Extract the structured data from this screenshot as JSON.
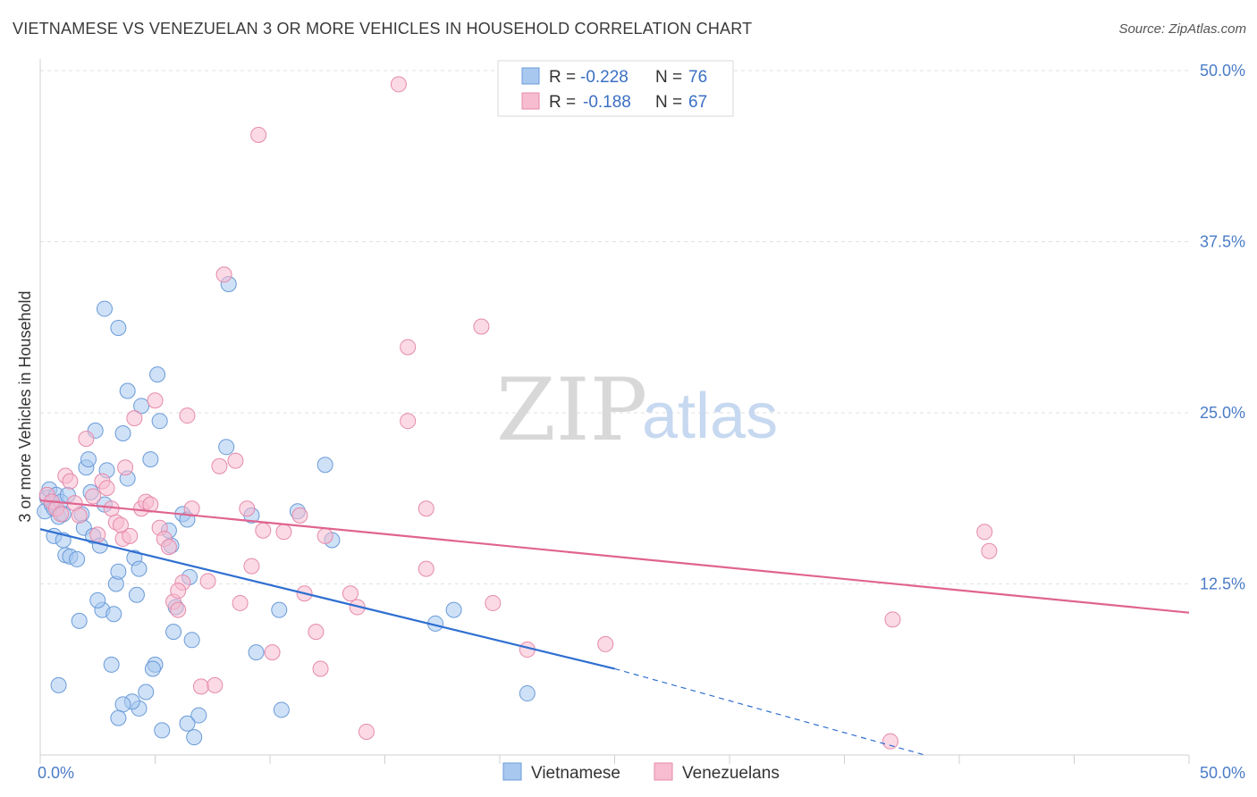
{
  "header": {
    "title": "VIETNAMESE VS VENEZUELAN 3 OR MORE VEHICLES IN HOUSEHOLD CORRELATION CHART",
    "source": "Source: ZipAtlas.com"
  },
  "watermark": {
    "zip": "ZIP",
    "atlas": "atlas"
  },
  "colors": {
    "vietnamese_fill": "#a8c8f0",
    "vietnamese_stroke": "#6a9bd8",
    "vietnamese_line": "#2f6fd1",
    "venezuelan_fill": "#f7bcd0",
    "venezuelan_stroke": "#e58aab",
    "venezuelan_line": "#e0648f",
    "grid": "#e2e2e2",
    "tick_label": "#4a7cc7"
  },
  "chart_data": {
    "type": "scatter",
    "title": "VIETNAMESE VS VENEZUELAN 3 OR MORE VEHICLES IN HOUSEHOLD CORRELATION CHART",
    "xlabel": "",
    "ylabel": "3 or more Vehicles in Household",
    "xlim": [
      0,
      50
    ],
    "ylim": [
      0,
      50
    ],
    "x_tick_labels": [
      "0.0%",
      "50.0%"
    ],
    "y_ticks": [
      12.5,
      25.0,
      37.5,
      50.0
    ],
    "y_tick_labels": [
      "12.5%",
      "25.0%",
      "37.5%",
      "50.0%"
    ],
    "grid": "horizontal dashed",
    "legend_placement": "top-center",
    "legend": [
      {
        "r_label": "R = ",
        "r_value": "-0.228",
        "n_label": "N = ",
        "n_value": "76"
      },
      {
        "r_label": "R = ",
        "r_value": "-0.188",
        "n_label": "N = ",
        "n_value": "67"
      }
    ],
    "bottom_legend": [
      "Vietnamese",
      "Venezuelans"
    ],
    "series": [
      {
        "name": "Vietnamese",
        "trend": {
          "x0": 0,
          "y0": 16.5,
          "x1": 25,
          "y1": 6.3,
          "dash_x1": 38.5,
          "dash_y1": 0.0
        },
        "points": [
          [
            0.2,
            17.8
          ],
          [
            0.3,
            18.8
          ],
          [
            0.4,
            19.4
          ],
          [
            0.5,
            18.3
          ],
          [
            0.6,
            18.0
          ],
          [
            0.7,
            19.0
          ],
          [
            0.8,
            17.4
          ],
          [
            0.9,
            18.5
          ],
          [
            1.0,
            17.6
          ],
          [
            1.2,
            19.0
          ],
          [
            0.6,
            16.0
          ],
          [
            1.0,
            15.7
          ],
          [
            1.1,
            14.6
          ],
          [
            1.3,
            14.5
          ],
          [
            1.6,
            14.3
          ],
          [
            1.8,
            17.6
          ],
          [
            1.9,
            16.6
          ],
          [
            2.0,
            21.0
          ],
          [
            2.1,
            21.6
          ],
          [
            2.2,
            19.2
          ],
          [
            2.3,
            16.0
          ],
          [
            2.4,
            23.7
          ],
          [
            2.6,
            15.3
          ],
          [
            2.8,
            18.3
          ],
          [
            2.9,
            20.8
          ],
          [
            2.7,
            10.6
          ],
          [
            2.5,
            11.3
          ],
          [
            3.2,
            10.3
          ],
          [
            3.3,
            12.5
          ],
          [
            3.4,
            13.4
          ],
          [
            3.1,
            6.6
          ],
          [
            2.8,
            32.6
          ],
          [
            3.4,
            31.2
          ],
          [
            3.6,
            23.5
          ],
          [
            3.8,
            20.2
          ],
          [
            3.8,
            26.6
          ],
          [
            4.1,
            14.4
          ],
          [
            4.3,
            13.6
          ],
          [
            4.2,
            11.7
          ],
          [
            4.4,
            25.5
          ],
          [
            4.8,
            21.6
          ],
          [
            5.1,
            27.8
          ],
          [
            5.2,
            24.4
          ],
          [
            5.6,
            16.4
          ],
          [
            5.7,
            15.3
          ],
          [
            5.9,
            10.8
          ],
          [
            6.2,
            17.6
          ],
          [
            6.4,
            17.2
          ],
          [
            6.5,
            13.0
          ],
          [
            6.6,
            8.4
          ],
          [
            6.9,
            2.9
          ],
          [
            6.7,
            1.3
          ],
          [
            5.8,
            9.0
          ],
          [
            5.0,
            6.6
          ],
          [
            4.9,
            6.3
          ],
          [
            4.6,
            4.6
          ],
          [
            4.3,
            3.4
          ],
          [
            4.0,
            3.9
          ],
          [
            3.6,
            3.7
          ],
          [
            3.4,
            2.7
          ],
          [
            5.3,
            1.8
          ],
          [
            6.4,
            2.3
          ],
          [
            8.1,
            22.5
          ],
          [
            8.2,
            34.4
          ],
          [
            9.2,
            17.5
          ],
          [
            9.4,
            7.5
          ],
          [
            10.4,
            10.6
          ],
          [
            10.5,
            3.3
          ],
          [
            11.2,
            17.8
          ],
          [
            12.4,
            21.2
          ],
          [
            12.7,
            15.7
          ],
          [
            17.2,
            9.6
          ],
          [
            18.0,
            10.6
          ],
          [
            21.2,
            4.5
          ],
          [
            0.8,
            5.1
          ],
          [
            1.7,
            9.8
          ]
        ]
      },
      {
        "name": "Venezuelans",
        "trend": {
          "x0": 0,
          "y0": 18.6,
          "x1": 50,
          "y1": 10.4
        },
        "points": [
          [
            0.3,
            19.0
          ],
          [
            0.5,
            18.5
          ],
          [
            0.7,
            18.0
          ],
          [
            0.9,
            17.6
          ],
          [
            1.1,
            20.4
          ],
          [
            1.3,
            20.0
          ],
          [
            1.5,
            18.4
          ],
          [
            1.7,
            17.5
          ],
          [
            2.0,
            23.1
          ],
          [
            2.3,
            18.9
          ],
          [
            2.5,
            16.1
          ],
          [
            2.7,
            20.0
          ],
          [
            2.9,
            19.5
          ],
          [
            3.1,
            18.0
          ],
          [
            3.3,
            17.0
          ],
          [
            3.6,
            15.8
          ],
          [
            3.7,
            21.0
          ],
          [
            3.9,
            16.0
          ],
          [
            4.1,
            24.6
          ],
          [
            4.4,
            18.0
          ],
          [
            4.6,
            18.5
          ],
          [
            4.8,
            18.3
          ],
          [
            5.0,
            25.9
          ],
          [
            5.2,
            16.6
          ],
          [
            5.4,
            15.8
          ],
          [
            5.6,
            15.2
          ],
          [
            5.8,
            11.2
          ],
          [
            6.0,
            10.6
          ],
          [
            6.2,
            12.6
          ],
          [
            6.4,
            24.8
          ],
          [
            6.6,
            18.0
          ],
          [
            7.0,
            5.0
          ],
          [
            7.3,
            12.7
          ],
          [
            7.6,
            5.1
          ],
          [
            7.8,
            21.1
          ],
          [
            8.0,
            35.1
          ],
          [
            8.5,
            21.5
          ],
          [
            9.0,
            18.0
          ],
          [
            9.2,
            13.8
          ],
          [
            9.7,
            16.4
          ],
          [
            9.5,
            45.3
          ],
          [
            10.1,
            7.5
          ],
          [
            10.6,
            16.3
          ],
          [
            11.3,
            17.5
          ],
          [
            11.5,
            11.8
          ],
          [
            12.0,
            9.0
          ],
          [
            12.2,
            6.3
          ],
          [
            12.4,
            16.0
          ],
          [
            13.5,
            11.8
          ],
          [
            13.8,
            10.8
          ],
          [
            15.6,
            49.0
          ],
          [
            14.2,
            1.7
          ],
          [
            16.0,
            29.8
          ],
          [
            16.0,
            24.4
          ],
          [
            16.8,
            18.0
          ],
          [
            16.8,
            13.6
          ],
          [
            19.2,
            31.3
          ],
          [
            19.7,
            11.1
          ],
          [
            21.2,
            7.7
          ],
          [
            24.6,
            8.1
          ],
          [
            37.1,
            9.9
          ],
          [
            37.0,
            1.0
          ],
          [
            41.1,
            16.3
          ],
          [
            41.3,
            14.9
          ],
          [
            6.0,
            12.0
          ],
          [
            3.5,
            16.8
          ],
          [
            8.7,
            11.1
          ]
        ]
      }
    ]
  }
}
